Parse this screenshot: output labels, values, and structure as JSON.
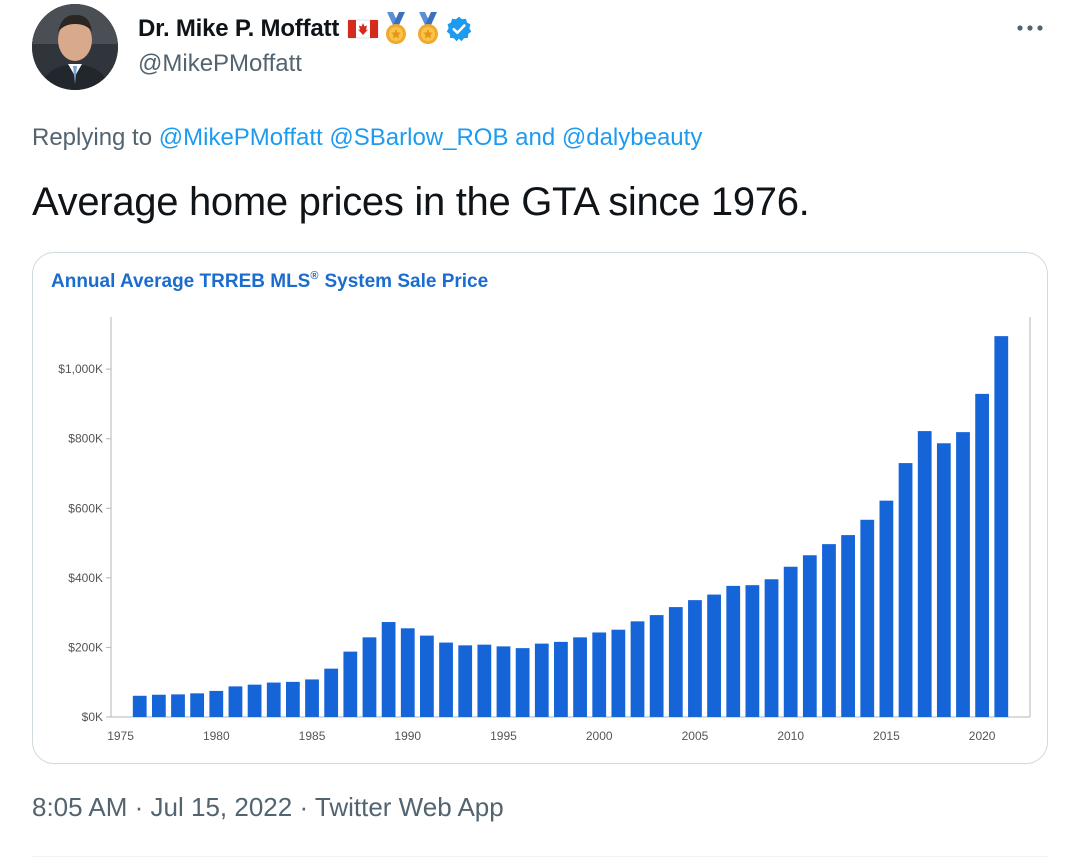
{
  "author": {
    "display_name": "Dr. Mike P. Moffatt",
    "handle": "@MikePMoffatt",
    "badges": [
      "canada-flag-icon",
      "medal-icon",
      "medal-icon",
      "verified-badge-icon"
    ]
  },
  "reply": {
    "prefix": "Replying to",
    "mention_1": "@MikePMoffatt",
    "mention_2": "@SBarlow_ROB",
    "connector": "and",
    "mention_3": "@dalybeauty"
  },
  "tweet": {
    "text": "Average home prices in the GTA since 1976."
  },
  "meta": {
    "time": "8:05 AM",
    "date": "Jul 15, 2022",
    "source": "Twitter Web App",
    "separator": "·"
  },
  "colors": {
    "accent": "#1d9bf0",
    "bar": "#1565d8",
    "chart_title": "#1a6ccf"
  },
  "chart_data": {
    "type": "bar",
    "title": "Annual Average TRREB MLS",
    "title_superscript": "®",
    "title_suffix": "System Sale Price",
    "x_ticks": [
      "1975",
      "1980",
      "1985",
      "1990",
      "1995",
      "2000",
      "2005",
      "2010",
      "2015",
      "2020"
    ],
    "y_ticks": [
      "$0K",
      "$200K",
      "$400K",
      "$600K",
      "$800K",
      "$1,000K"
    ],
    "ylim": [
      0,
      1150000
    ],
    "xlim": [
      1974.5,
      2022.5
    ],
    "categories": [
      1976,
      1977,
      1978,
      1979,
      1980,
      1981,
      1982,
      1983,
      1984,
      1985,
      1986,
      1987,
      1988,
      1989,
      1990,
      1991,
      1992,
      1993,
      1994,
      1995,
      1996,
      1997,
      1998,
      1999,
      2000,
      2001,
      2002,
      2003,
      2004,
      2005,
      2006,
      2007,
      2008,
      2009,
      2010,
      2011,
      2012,
      2013,
      2014,
      2015,
      2016,
      2017,
      2018,
      2019,
      2020,
      2021
    ],
    "values": [
      61000,
      64000,
      65000,
      68000,
      75000,
      88000,
      93000,
      99000,
      101000,
      108000,
      139000,
      188000,
      229000,
      273000,
      255000,
      234000,
      214000,
      206000,
      208000,
      203000,
      198000,
      211000,
      216000,
      229000,
      243000,
      251000,
      275000,
      293000,
      316000,
      336000,
      352000,
      377000,
      379000,
      396000,
      432000,
      465000,
      497000,
      523000,
      567000,
      622000,
      730000,
      822000,
      787000,
      819000,
      929000,
      1095000
    ],
    "grid": false
  }
}
